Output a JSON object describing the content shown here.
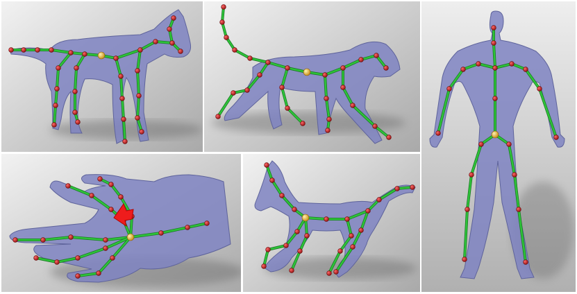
{
  "figure": {
    "panels": [
      {
        "id": "cat",
        "subject": "cat"
      },
      {
        "id": "lion",
        "subject": "lion"
      },
      {
        "id": "human",
        "subject": "human"
      },
      {
        "id": "hand",
        "subject": "hand"
      },
      {
        "id": "horse",
        "subject": "horse"
      }
    ],
    "colors": {
      "mesh": "#7f84c2",
      "mesh_stroke": "#5e639b",
      "bone": "#2ec43a",
      "bone_edge": "#1a7a22",
      "joint": "#c81e1e",
      "root_joint": "#e0b020",
      "arrow": "#ee1c1c"
    }
  }
}
